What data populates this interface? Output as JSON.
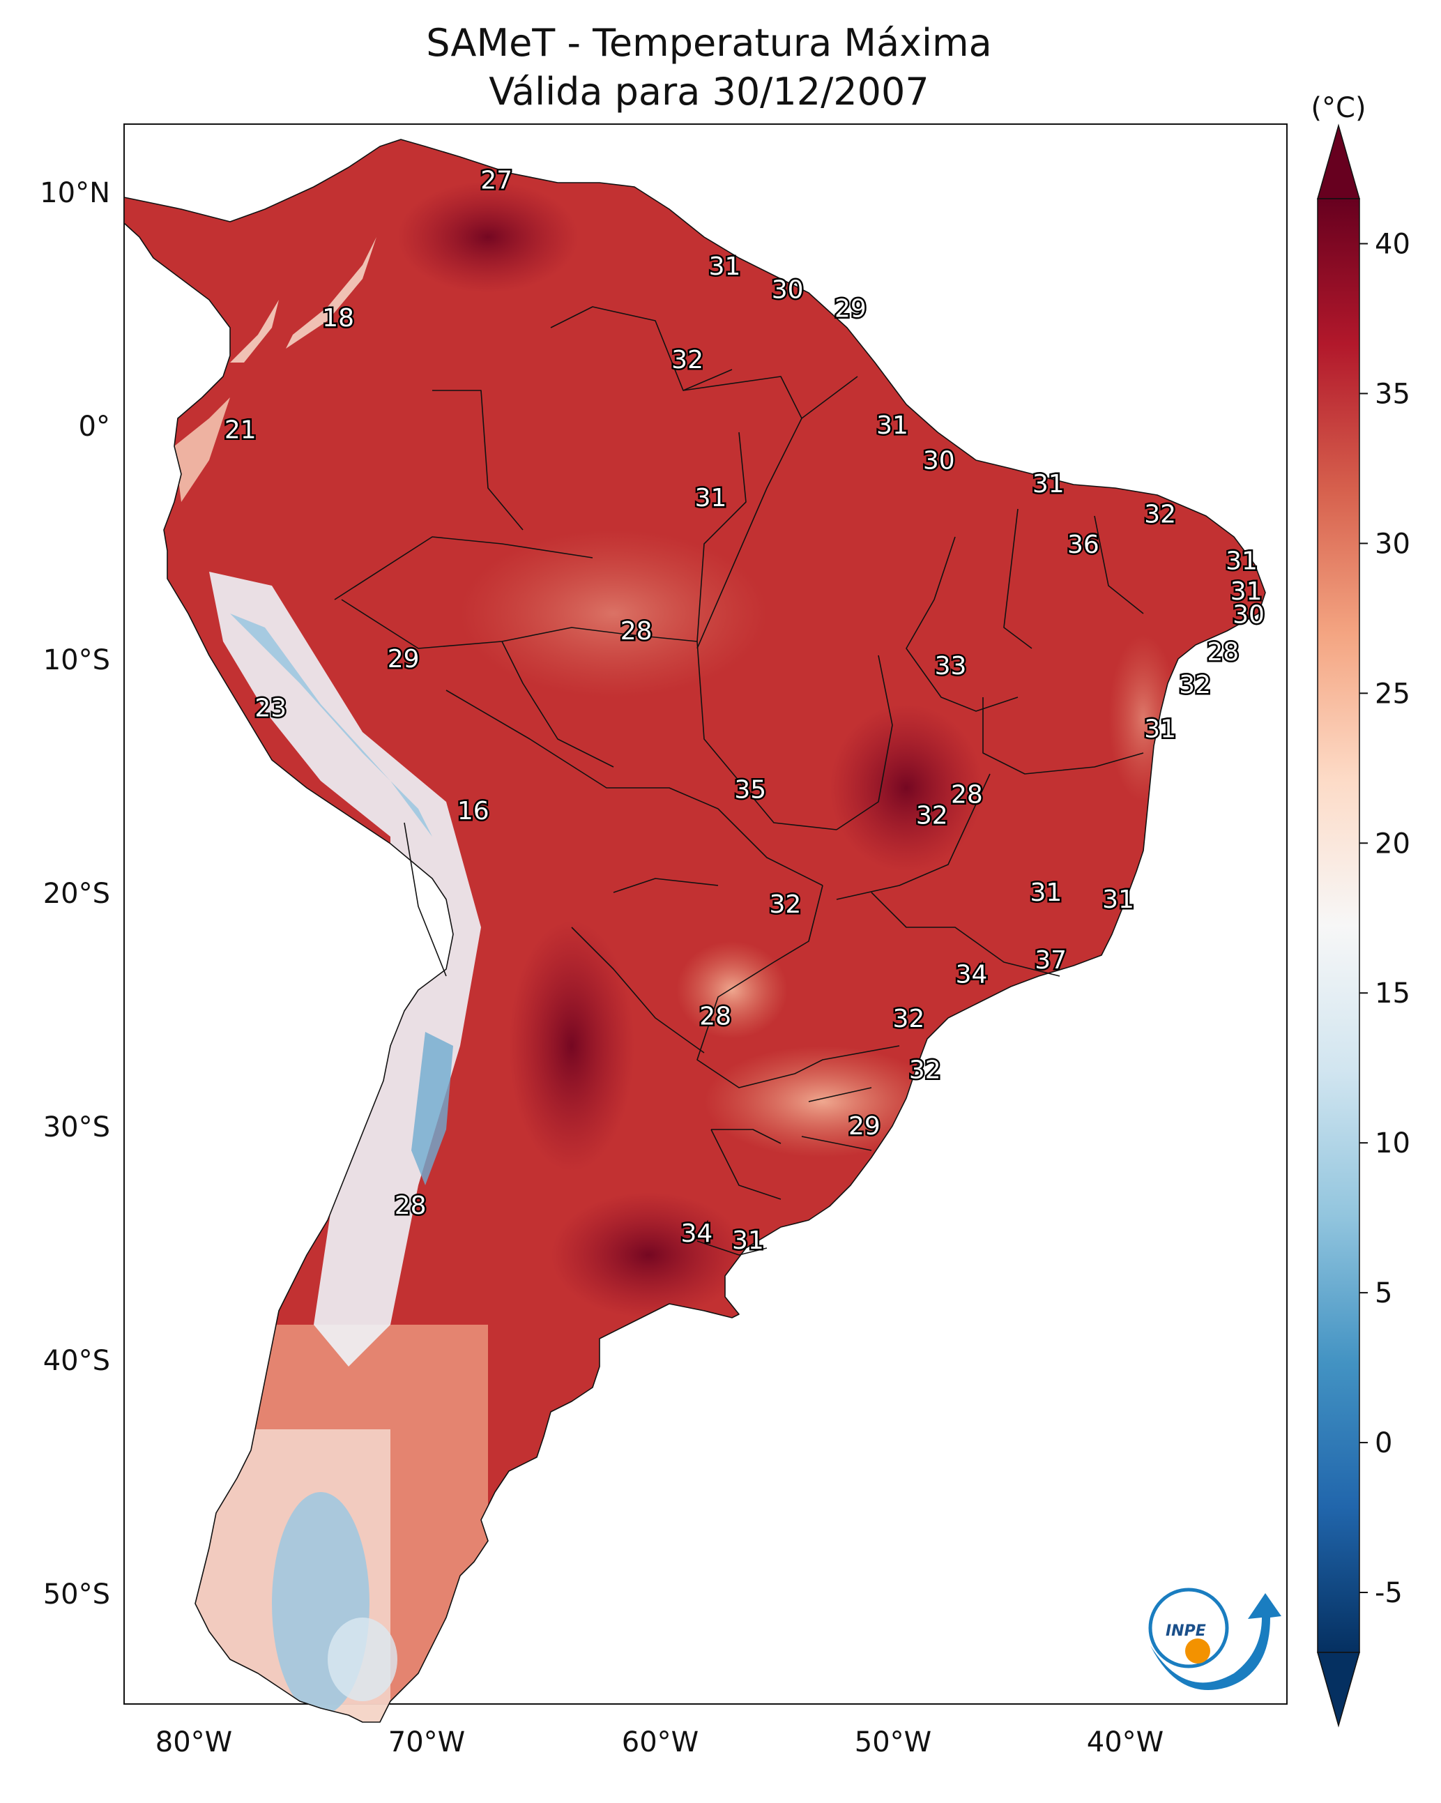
{
  "title": {
    "line1": "SAMeT - Temperatura Máxima",
    "line2": "Válida para 30/12/2007"
  },
  "colorbar": {
    "unit": "(°C)",
    "ticks": [
      "40",
      "35",
      "30",
      "25",
      "20",
      "15",
      "10",
      "5",
      "0",
      "-5"
    ],
    "tick_values": [
      40,
      35,
      30,
      25,
      20,
      15,
      10,
      5,
      0,
      -5
    ],
    "range": [
      -5,
      40
    ],
    "colors": [
      "#053061",
      "#2166ac",
      "#4393c3",
      "#92c5de",
      "#d1e5f0",
      "#f7f7f7",
      "#fddbc7",
      "#f4a582",
      "#d6604d",
      "#b2182b",
      "#67001f"
    ]
  },
  "axes": {
    "lat_labels": [
      "10°N",
      "0°",
      "10°S",
      "20°S",
      "30°S",
      "40°S",
      "50°S"
    ],
    "lat_values": [
      10,
      0,
      -10,
      -20,
      -30,
      -40,
      -50
    ],
    "lon_labels": [
      "80°W",
      "70°W",
      "60°W",
      "50°W",
      "40°W"
    ],
    "lon_values": [
      -80,
      -70,
      -60,
      -50,
      -40
    ],
    "lon_range": [
      -83,
      -33
    ],
    "lat_range": [
      -56,
      13
    ]
  },
  "station_values": [
    {
      "value": "27",
      "lon": -67.0,
      "lat": 10.5
    },
    {
      "value": "31",
      "lon": -57.2,
      "lat": 6.8
    },
    {
      "value": "30",
      "lon": -54.5,
      "lat": 5.8
    },
    {
      "value": "29",
      "lon": -51.8,
      "lat": 5.0
    },
    {
      "value": "18",
      "lon": -73.8,
      "lat": 4.6
    },
    {
      "value": "32",
      "lon": -58.8,
      "lat": 2.8
    },
    {
      "value": "21",
      "lon": -78.0,
      "lat": -0.2
    },
    {
      "value": "31",
      "lon": -50.0,
      "lat": 0.0
    },
    {
      "value": "30",
      "lon": -48.0,
      "lat": -1.5
    },
    {
      "value": "31",
      "lon": -43.3,
      "lat": -2.5
    },
    {
      "value": "31",
      "lon": -57.8,
      "lat": -3.1
    },
    {
      "value": "32",
      "lon": -38.5,
      "lat": -3.8
    },
    {
      "value": "36",
      "lon": -41.8,
      "lat": -5.1
    },
    {
      "value": "31",
      "lon": -35.0,
      "lat": -5.8
    },
    {
      "value": "31",
      "lon": -34.8,
      "lat": -7.1
    },
    {
      "value": "30",
      "lon": -34.7,
      "lat": -8.1
    },
    {
      "value": "28",
      "lon": -61.0,
      "lat": -8.8
    },
    {
      "value": "28",
      "lon": -35.8,
      "lat": -9.7
    },
    {
      "value": "29",
      "lon": -71.0,
      "lat": -10.0
    },
    {
      "value": "33",
      "lon": -47.5,
      "lat": -10.3
    },
    {
      "value": "32",
      "lon": -37.0,
      "lat": -11.1
    },
    {
      "value": "23",
      "lon": -76.7,
      "lat": -12.1
    },
    {
      "value": "31",
      "lon": -38.5,
      "lat": -13.0
    },
    {
      "value": "35",
      "lon": -56.1,
      "lat": -15.6
    },
    {
      "value": "28",
      "lon": -46.8,
      "lat": -15.8
    },
    {
      "value": "16",
      "lon": -68.0,
      "lat": -16.5
    },
    {
      "value": "32",
      "lon": -48.3,
      "lat": -16.7
    },
    {
      "value": "31",
      "lon": -43.4,
      "lat": -20.0
    },
    {
      "value": "31",
      "lon": -40.3,
      "lat": -20.3
    },
    {
      "value": "32",
      "lon": -54.6,
      "lat": -20.5
    },
    {
      "value": "37",
      "lon": -43.2,
      "lat": -22.9
    },
    {
      "value": "34",
      "lon": -46.6,
      "lat": -23.5
    },
    {
      "value": "28",
      "lon": -57.6,
      "lat": -25.3
    },
    {
      "value": "32",
      "lon": -49.3,
      "lat": -25.4
    },
    {
      "value": "32",
      "lon": -48.6,
      "lat": -27.6
    },
    {
      "value": "29",
      "lon": -51.2,
      "lat": -30.0
    },
    {
      "value": "28",
      "lon": -70.7,
      "lat": -33.4
    },
    {
      "value": "34",
      "lon": -58.4,
      "lat": -34.6
    },
    {
      "value": "31",
      "lon": -56.2,
      "lat": -34.9
    }
  ],
  "colors": {
    "hot_dark": "#67001f",
    "hot": "#b2182b",
    "warm": "#d6604d",
    "mild": "#f4a582",
    "cool": "#f7f7f7",
    "cold": "#92c5de",
    "logo_blue": "#1a7dc0",
    "logo_orange": "#f39200"
  },
  "logo": {
    "text": "INPE"
  }
}
